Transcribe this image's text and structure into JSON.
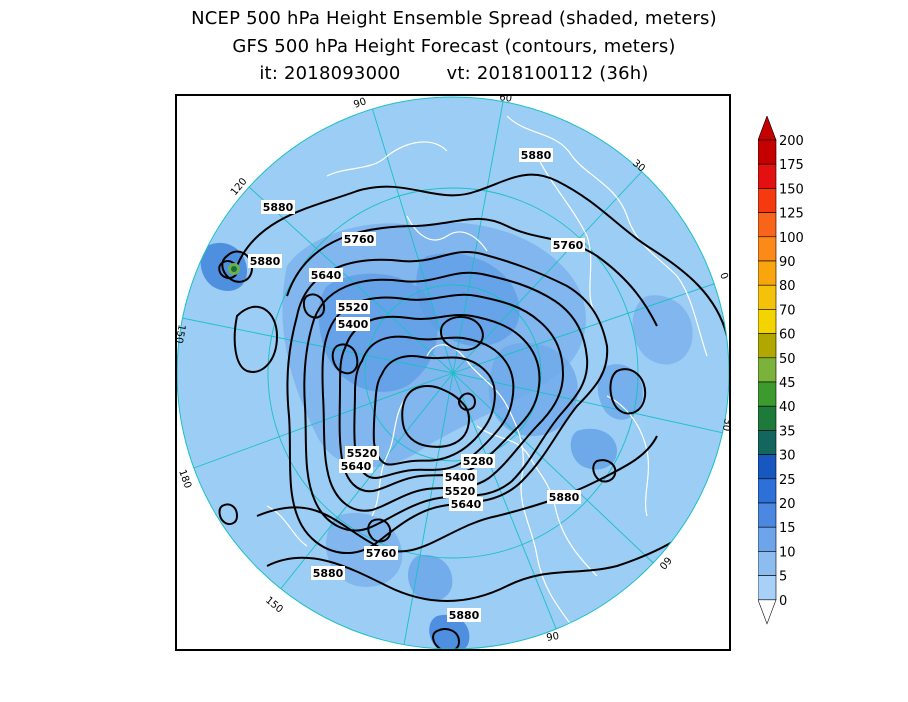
{
  "title": {
    "line1": "NCEP 500 hPa Height Ensemble Spread (shaded, meters)",
    "line2": "GFS 500 hPa Height Forecast (contours, meters)",
    "init_label": "it: 2018093000",
    "valid_label": "vt: 2018100112 (36h)"
  },
  "map": {
    "projection": "north polar stereographic",
    "longitude_labels": [
      "60",
      "30",
      "0",
      "30",
      "60",
      "90",
      "120",
      "150",
      "180",
      "150",
      "120",
      "90"
    ],
    "contour_labels": [
      "5880",
      "5880",
      "5880",
      "5760",
      "5760",
      "5640",
      "5520",
      "5400",
      "5520",
      "5640",
      "5280",
      "5400",
      "5520",
      "5640",
      "5880",
      "5760",
      "5880",
      "5880"
    ],
    "colors": {
      "background_shade": "#9ccdf4",
      "spread_10_15": "#6ea9ea",
      "spread_15_20": "#4f8fe0",
      "spread_40_45": "#1a6e3a",
      "spread_50_60": "#6ab04c",
      "contour": "#000000",
      "coastline": "#ffffff",
      "graticule": "#19c0c8"
    }
  },
  "colorbar": {
    "labels": [
      "200",
      "175",
      "150",
      "125",
      "100",
      "90",
      "80",
      "70",
      "60",
      "50",
      "45",
      "40",
      "35",
      "30",
      "25",
      "20",
      "15",
      "10",
      "5",
      "0"
    ],
    "colors": [
      "#c40000",
      "#e21010",
      "#f43a0e",
      "#f8641a",
      "#fb8a18",
      "#f9a60e",
      "#f4c20a",
      "#f3d400",
      "#b0a800",
      "#7bb23a",
      "#3c9a2e",
      "#1d7a3a",
      "#13665e",
      "#1758c0",
      "#2c70d8",
      "#4a88e2",
      "#6ea4ea",
      "#8dbcf0",
      "#a9d0f6"
    ]
  }
}
